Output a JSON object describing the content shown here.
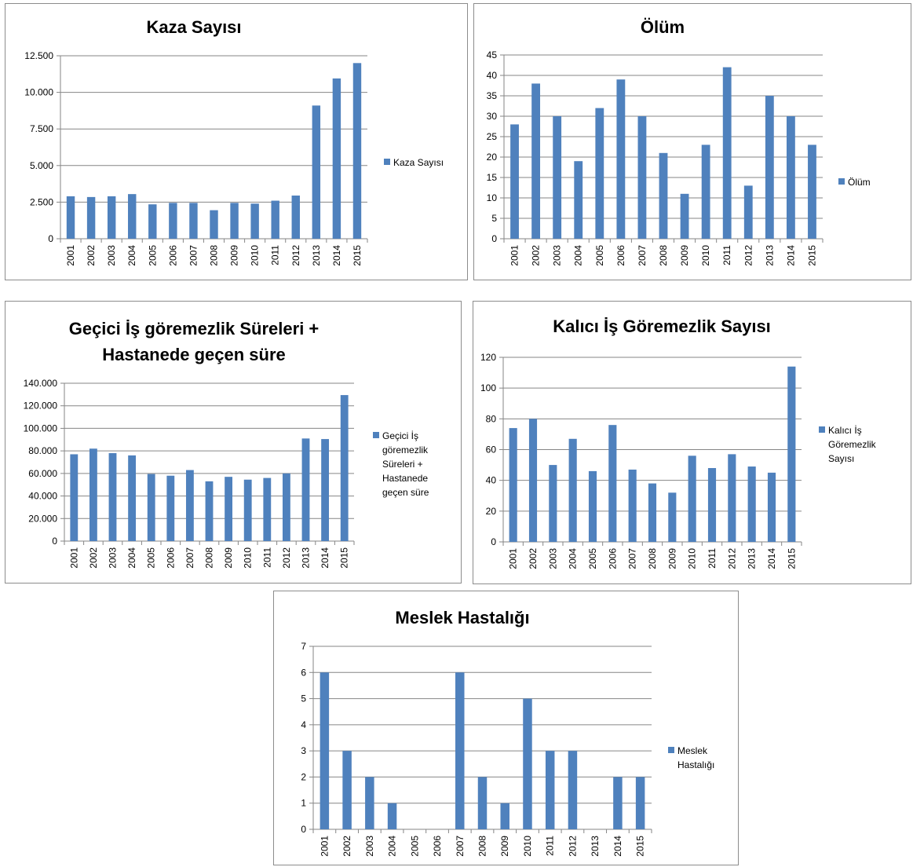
{
  "style": {
    "bar_color": "#4f81bd",
    "gridline_color": "#868686",
    "axis_color": "#868686"
  },
  "chart_data": [
    {
      "type": "bar",
      "title": "Kaza Sayısı",
      "categories": [
        "2001",
        "2002",
        "2003",
        "2004",
        "2005",
        "2006",
        "2007",
        "2008",
        "2009",
        "2010",
        "2011",
        "2012",
        "2013",
        "2014",
        "2015"
      ],
      "series": [
        {
          "name": "Kaza Sayısı",
          "values": [
            2900,
            2850,
            2900,
            3050,
            2350,
            2450,
            2450,
            1950,
            2450,
            2400,
            2600,
            2950,
            9100,
            10950,
            12000
          ]
        }
      ],
      "ylim": [
        0,
        12500
      ],
      "yticks": [
        "0",
        "2.500",
        "5.000",
        "7.500",
        "10.000",
        "12.500"
      ],
      "legend_lines": [
        "Kaza Sayısı"
      ],
      "legend_position": "right",
      "grid": true
    },
    {
      "type": "bar",
      "title": "Ölüm",
      "categories": [
        "2001",
        "2002",
        "2003",
        "2004",
        "2005",
        "2006",
        "2007",
        "2008",
        "2009",
        "2010",
        "2011",
        "2012",
        "2013",
        "2014",
        "2015"
      ],
      "series": [
        {
          "name": "Ölüm",
          "values": [
            28,
            38,
            30,
            19,
            32,
            39,
            30,
            21,
            11,
            23,
            42,
            13,
            35,
            30,
            23
          ]
        }
      ],
      "ylim": [
        0,
        45
      ],
      "yticks": [
        "0",
        "5",
        "10",
        "15",
        "20",
        "25",
        "30",
        "35",
        "40",
        "45"
      ],
      "legend_lines": [
        "Ölüm"
      ],
      "legend_position": "right",
      "grid": true
    },
    {
      "type": "bar",
      "title": "Geçici İş göremezlik Süreleri + Hastanede geçen süre",
      "title_lines": [
        "Geçici İş göremezlik Süreleri +",
        "Hastanede geçen süre"
      ],
      "categories": [
        "2001",
        "2002",
        "2003",
        "2004",
        "2005",
        "2006",
        "2007",
        "2008",
        "2009",
        "2010",
        "2011",
        "2012",
        "2013",
        "2014",
        "2015"
      ],
      "series": [
        {
          "name": "Geçici İş göremezlik Süreleri + Hastanede geçen süre",
          "values": [
            77000,
            82000,
            78000,
            76000,
            59500,
            58000,
            63000,
            53000,
            57000,
            54500,
            56000,
            60000,
            91000,
            90500,
            129500
          ]
        }
      ],
      "ylim": [
        0,
        140000
      ],
      "yticks": [
        "0",
        "20.000",
        "40.000",
        "60.000",
        "80.000",
        "100.000",
        "120.000",
        "140.000"
      ],
      "legend_lines": [
        "Geçici İş",
        "göremezlik",
        "Süreleri +",
        "Hastanede",
        "geçen süre"
      ],
      "legend_position": "right",
      "grid": true
    },
    {
      "type": "bar",
      "title": "Kalıcı İş Göremezlik Sayısı",
      "categories": [
        "2001",
        "2002",
        "2003",
        "2004",
        "2005",
        "2006",
        "2007",
        "2008",
        "2009",
        "2010",
        "2011",
        "2012",
        "2013",
        "2014",
        "2015"
      ],
      "series": [
        {
          "name": "Kalıcı İş Göremezlik Sayısı",
          "values": [
            74,
            80,
            50,
            67,
            46,
            76,
            47,
            38,
            32,
            56,
            48,
            57,
            49,
            45,
            114
          ]
        }
      ],
      "ylim": [
        0,
        120
      ],
      "yticks": [
        "0",
        "20",
        "40",
        "60",
        "80",
        "100",
        "120"
      ],
      "legend_lines": [
        "Kalıcı İş",
        "Göremezlik",
        "Sayısı"
      ],
      "legend_position": "right",
      "grid": true
    },
    {
      "type": "bar",
      "title": "Meslek Hastalığı",
      "categories": [
        "2001",
        "2002",
        "2003",
        "2004",
        "2005",
        "2006",
        "2007",
        "2008",
        "2009",
        "2010",
        "2011",
        "2012",
        "2013",
        "2014",
        "2015"
      ],
      "series": [
        {
          "name": "Meslek Hastalığı",
          "values": [
            6,
            3,
            2,
            1,
            0,
            0,
            6,
            2,
            1,
            5,
            3,
            3,
            0,
            2,
            2
          ]
        }
      ],
      "ylim": [
        0,
        7
      ],
      "yticks": [
        "0",
        "1",
        "2",
        "3",
        "4",
        "5",
        "6",
        "7"
      ],
      "legend_lines": [
        "Meslek",
        "Hastalığı"
      ],
      "legend_position": "right",
      "grid": true
    }
  ]
}
